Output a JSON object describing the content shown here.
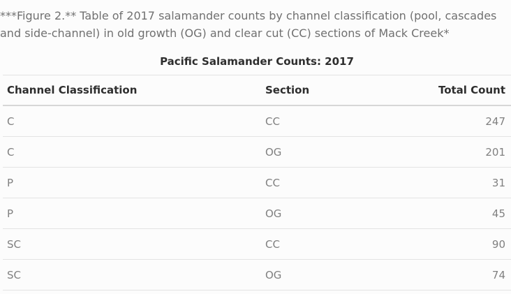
{
  "caption": "***Figure 2.** Table of 2017 salamander counts by channel classification (pool, cascades and side-channel) in old growth (OG) and clear cut (CC) sections of Mack Creek*",
  "table": {
    "title": "Pacific Salamander Counts: 2017",
    "headers": [
      "Channel Classification",
      "Section",
      "Total Count"
    ],
    "rows": [
      [
        "C",
        "CC",
        "247"
      ],
      [
        "C",
        "OG",
        "201"
      ],
      [
        "P",
        "CC",
        "31"
      ],
      [
        "P",
        "OG",
        "45"
      ],
      [
        "SC",
        "CC",
        "90"
      ],
      [
        "SC",
        "OG",
        "74"
      ]
    ]
  }
}
